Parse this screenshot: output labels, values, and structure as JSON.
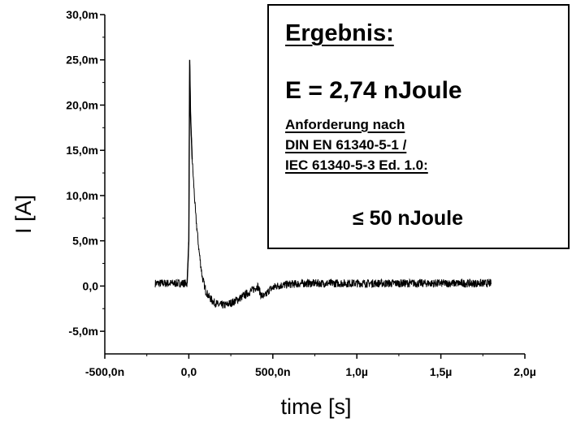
{
  "chart_data": {
    "type": "line",
    "title": "",
    "xlabel": "time [s]",
    "ylabel": "I [A]",
    "xlim": [
      -5e-07,
      2e-06
    ],
    "ylim": [
      -0.0075,
      0.03
    ],
    "x_ticks": [
      -5e-07,
      0,
      5e-07,
      1e-06,
      1.5e-06,
      2e-06
    ],
    "x_tick_labels": [
      "-500,0n",
      "0,0",
      "500,0n",
      "1,0µ",
      "1,5µ",
      "2,0µ"
    ],
    "y_ticks": [
      -0.005,
      0,
      0.005,
      0.01,
      0.015,
      0.02,
      0.025,
      0.03
    ],
    "y_tick_labels": [
      "-5,0m",
      "0,0",
      "5,0m",
      "10,0m",
      "15,0m",
      "20,0m",
      "25,0m",
      "30,0m"
    ],
    "grid": false,
    "legend": "none",
    "line_color": "#000000",
    "series": [
      {
        "x": [
          -2e-07,
          -1e-07,
          -1e-08,
          0,
          5e-09,
          1e-08,
          2e-08,
          4e-08,
          6e-08,
          8e-08,
          1e-07,
          1.2e-07,
          1.5e-07,
          1.8e-07,
          2.2e-07,
          2.6e-07,
          3e-07,
          3.5e-07,
          3.9e-07,
          4.1e-07,
          4.3e-07,
          4.5e-07,
          4.8e-07,
          5.2e-07,
          6e-07,
          7e-07,
          8e-07,
          1e-06,
          1.2e-06,
          1.4e-06,
          1.6e-06,
          1.8e-06
        ],
        "y": [
          0.0003,
          0.0003,
          0.0003,
          0.005,
          0.025,
          0.019,
          0.014,
          0.008,
          0.004,
          0.001,
          -0.0005,
          -0.0012,
          -0.0018,
          -0.0021,
          -0.0021,
          -0.0018,
          -0.0014,
          -0.0008,
          -0.0003,
          0.0,
          -0.001,
          -0.0012,
          -0.0004,
          0.0,
          0.0002,
          0.0003,
          0.0003,
          0.0003,
          0.0003,
          0.0003,
          0.0003,
          0.0003
        ]
      }
    ]
  },
  "result": {
    "title": "Ergebnis:",
    "energy": "E = 2,74 nJoule",
    "requirement_lines": [
      "Anforderung nach",
      "DIN EN 61340-5-1 /",
      "IEC 61340-5-3 Ed. 1.0:"
    ],
    "limit": "≤  50 nJoule"
  }
}
